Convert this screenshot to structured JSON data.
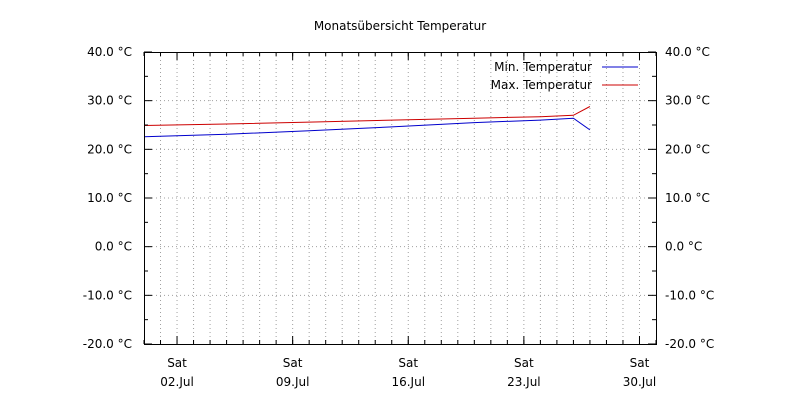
{
  "chart_data": {
    "type": "line",
    "title": "Monatsübersicht Temperatur",
    "ylim": [
      -20,
      40
    ],
    "y_ticks": [
      -20,
      -10,
      0,
      10,
      20,
      30,
      40
    ],
    "y_tick_labels": [
      "-20.0 °C",
      "-10.0 °C",
      "0.0 °C",
      "10.0 °C",
      "20.0 °C",
      "30.0 °C",
      "40.0 °C"
    ],
    "xlim": [
      "2016-06-30",
      "2016-07-31"
    ],
    "x_ticks": [
      "2016-07-02",
      "2016-07-09",
      "2016-07-16",
      "2016-07-23",
      "2016-07-30"
    ],
    "x_tick_labels": [
      {
        "day": "Sat",
        "date": "02.Jul"
      },
      {
        "day": "Sat",
        "date": "09.Jul"
      },
      {
        "day": "Sat",
        "date": "16.Jul"
      },
      {
        "day": "Sat",
        "date": "23.Jul"
      },
      {
        "day": "Sat",
        "date": "30.Jul"
      }
    ],
    "grid": true,
    "legend_position": "top-right",
    "series": [
      {
        "name": "Min. Temperatur",
        "color": "#0000cc",
        "x": [
          "2016-06-30",
          "2016-07-05",
          "2016-07-10",
          "2016-07-15",
          "2016-07-20",
          "2016-07-24",
          "2016-07-26",
          "2016-07-27"
        ],
        "values": [
          22.6,
          23.1,
          23.8,
          24.6,
          25.5,
          26.0,
          26.4,
          24.0
        ]
      },
      {
        "name": "Max. Temperatur",
        "color": "#cc0000",
        "x": [
          "2016-06-30",
          "2016-07-05",
          "2016-07-10",
          "2016-07-15",
          "2016-07-20",
          "2016-07-24",
          "2016-07-26",
          "2016-07-27"
        ],
        "values": [
          24.9,
          25.2,
          25.6,
          26.0,
          26.4,
          26.7,
          27.0,
          28.8
        ]
      }
    ]
  }
}
